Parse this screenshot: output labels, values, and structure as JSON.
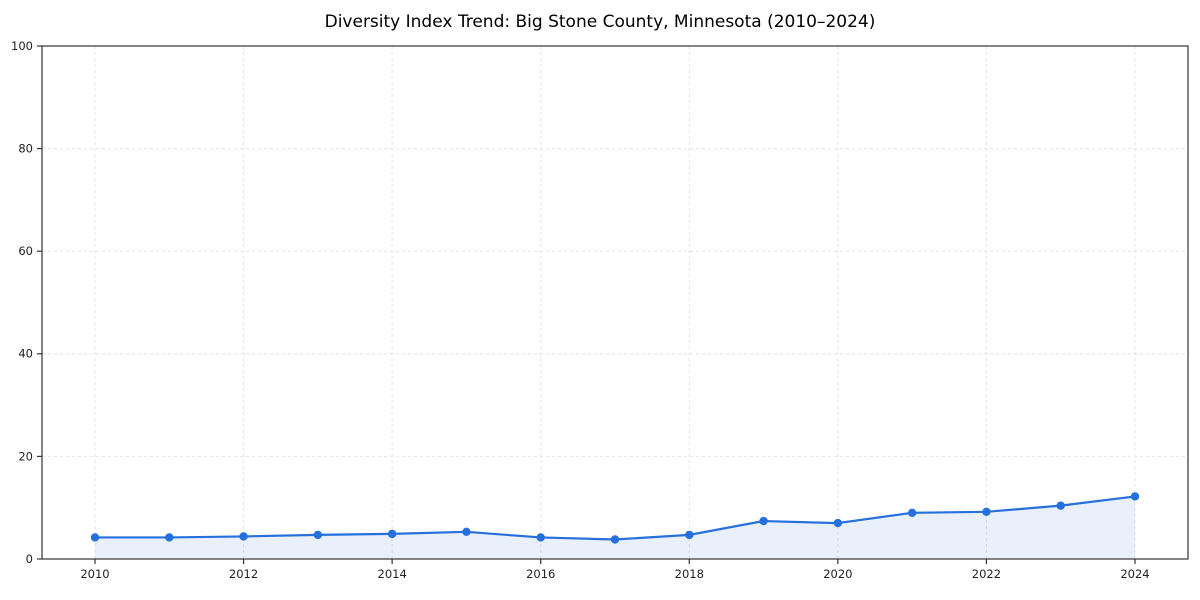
{
  "chart_data": {
    "type": "line",
    "title": "Diversity Index Trend: Big Stone County, Minnesota (2010–2024)",
    "series_name": "Diversity Index",
    "x": [
      2010,
      2011,
      2012,
      2013,
      2014,
      2015,
      2016,
      2017,
      2018,
      2019,
      2020,
      2021,
      2022,
      2023,
      2024
    ],
    "values": [
      4.2,
      4.2,
      4.4,
      4.7,
      4.9,
      5.3,
      4.2,
      3.8,
      4.7,
      7.4,
      7.0,
      9.0,
      9.2,
      10.4,
      12.2
    ],
    "xlabel": "",
    "ylabel": "",
    "ylim": [
      0,
      100
    ],
    "x_ticks": [
      2010,
      2012,
      2014,
      2016,
      2018,
      2020,
      2022,
      2024
    ],
    "y_ticks": [
      0,
      20,
      40,
      60,
      80,
      100
    ],
    "grid": true,
    "legend": "none",
    "line_color": "#2570dc",
    "marker_color": "#2570dc",
    "fill_color": "rgba(37,112,220,0.10)",
    "grid_color": "#e4e4e4",
    "spine_color": "#333333"
  }
}
